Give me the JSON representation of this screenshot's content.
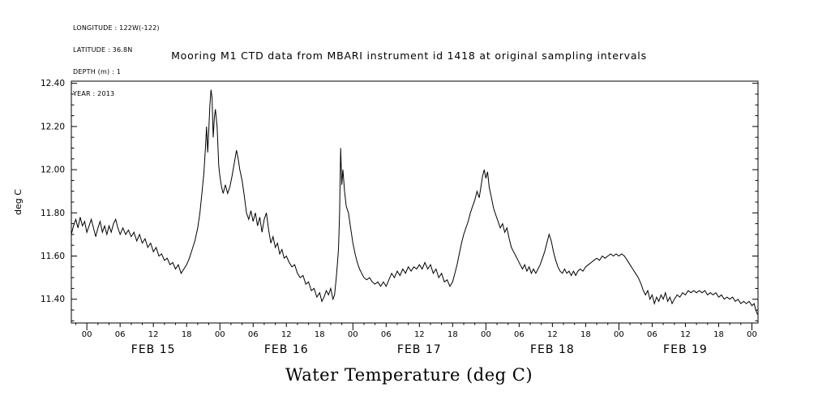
{
  "meta": {
    "longitude": "LONGITUDE : 122W(-122)",
    "latitude": "LATITUDE : 36.8N",
    "depth": "DEPTH (m) : 1",
    "year": "YEAR : 2013"
  },
  "title": "Mooring M1 CTD data from MBARI instrument id 1418 at original sampling intervals",
  "bottom_label": "Water Temperature (deg C)",
  "chart_data": {
    "type": "line",
    "title": "Mooring M1 CTD data from MBARI instrument id 1418 at original sampling intervals",
    "caption": "Water Temperature (deg C)",
    "xlabel": "",
    "ylabel": "deg C",
    "x_unit": "hours from FEB 15 00:00",
    "xlim": [
      -2.8,
      121.1
    ],
    "ylim": [
      11.29,
      12.41
    ],
    "line_color": "#000000",
    "grid": false,
    "legend": "none",
    "y_ticks": [
      {
        "v": 11.4,
        "label": "11.40"
      },
      {
        "v": 11.6,
        "label": "11.60"
      },
      {
        "v": 11.8,
        "label": "11.80"
      },
      {
        "v": 12.0,
        "label": "12.00"
      },
      {
        "v": 12.2,
        "label": "12.20"
      },
      {
        "v": 12.4,
        "label": "12.40"
      }
    ],
    "x_ticks": [
      {
        "t": 0,
        "label": "00"
      },
      {
        "t": 6,
        "label": "06"
      },
      {
        "t": 12,
        "label": "12"
      },
      {
        "t": 18,
        "label": "18"
      },
      {
        "t": 24,
        "label": "00"
      },
      {
        "t": 30,
        "label": "06"
      },
      {
        "t": 36,
        "label": "12"
      },
      {
        "t": 42,
        "label": "18"
      },
      {
        "t": 48,
        "label": "00"
      },
      {
        "t": 54,
        "label": "06"
      },
      {
        "t": 60,
        "label": "12"
      },
      {
        "t": 66,
        "label": "18"
      },
      {
        "t": 72,
        "label": "00"
      },
      {
        "t": 78,
        "label": "06"
      },
      {
        "t": 84,
        "label": "12"
      },
      {
        "t": 90,
        "label": "18"
      },
      {
        "t": 96,
        "label": "00"
      },
      {
        "t": 102,
        "label": "06"
      },
      {
        "t": 108,
        "label": "12"
      },
      {
        "t": 114,
        "label": "18"
      },
      {
        "t": 120,
        "label": "00"
      }
    ],
    "day_labels": [
      {
        "t": 12,
        "label": "FEB 15"
      },
      {
        "t": 36,
        "label": "FEB 16"
      },
      {
        "t": 60,
        "label": "FEB 17"
      },
      {
        "t": 84,
        "label": "FEB 18"
      },
      {
        "t": 108,
        "label": "FEB 19"
      }
    ],
    "points": [
      [
        -2.8,
        11.7
      ],
      [
        -2.4,
        11.74
      ],
      [
        -2.0,
        11.77
      ],
      [
        -1.6,
        11.73
      ],
      [
        -1.2,
        11.78
      ],
      [
        -0.8,
        11.74
      ],
      [
        -0.4,
        11.76
      ],
      [
        0.0,
        11.71
      ],
      [
        0.4,
        11.74
      ],
      [
        0.8,
        11.77
      ],
      [
        1.2,
        11.73
      ],
      [
        1.6,
        11.69
      ],
      [
        2.0,
        11.73
      ],
      [
        2.4,
        11.76
      ],
      [
        2.8,
        11.71
      ],
      [
        3.2,
        11.74
      ],
      [
        3.6,
        11.7
      ],
      [
        4.0,
        11.74
      ],
      [
        4.4,
        11.71
      ],
      [
        4.8,
        11.75
      ],
      [
        5.2,
        11.77
      ],
      [
        5.6,
        11.73
      ],
      [
        6.0,
        11.7
      ],
      [
        6.5,
        11.73
      ],
      [
        7.0,
        11.7
      ],
      [
        7.5,
        11.72
      ],
      [
        8.0,
        11.69
      ],
      [
        8.5,
        11.71
      ],
      [
        9.0,
        11.67
      ],
      [
        9.5,
        11.7
      ],
      [
        10.0,
        11.66
      ],
      [
        10.5,
        11.68
      ],
      [
        11.0,
        11.64
      ],
      [
        11.5,
        11.66
      ],
      [
        12.0,
        11.62
      ],
      [
        12.5,
        11.64
      ],
      [
        13.0,
        11.6
      ],
      [
        13.5,
        11.61
      ],
      [
        14.0,
        11.58
      ],
      [
        14.5,
        11.59
      ],
      [
        15.0,
        11.56
      ],
      [
        15.5,
        11.57
      ],
      [
        16.0,
        11.54
      ],
      [
        16.5,
        11.56
      ],
      [
        17.0,
        11.52
      ],
      [
        17.5,
        11.54
      ],
      [
        18.0,
        11.56
      ],
      [
        18.5,
        11.59
      ],
      [
        19.0,
        11.63
      ],
      [
        19.5,
        11.67
      ],
      [
        20.0,
        11.73
      ],
      [
        20.4,
        11.8
      ],
      [
        20.8,
        11.9
      ],
      [
        21.1,
        11.98
      ],
      [
        21.4,
        12.1
      ],
      [
        21.6,
        12.2
      ],
      [
        21.8,
        12.08
      ],
      [
        22.0,
        12.18
      ],
      [
        22.2,
        12.3
      ],
      [
        22.4,
        12.37
      ],
      [
        22.6,
        12.33
      ],
      [
        22.8,
        12.15
      ],
      [
        23.0,
        12.24
      ],
      [
        23.2,
        12.28
      ],
      [
        23.5,
        12.2
      ],
      [
        23.8,
        12.02
      ],
      [
        24.0,
        11.97
      ],
      [
        24.3,
        11.92
      ],
      [
        24.6,
        11.89
      ],
      [
        25.0,
        11.93
      ],
      [
        25.4,
        11.89
      ],
      [
        25.8,
        11.92
      ],
      [
        26.2,
        11.97
      ],
      [
        26.6,
        12.03
      ],
      [
        27.0,
        12.09
      ],
      [
        27.3,
        12.05
      ],
      [
        27.6,
        12.0
      ],
      [
        28.0,
        11.95
      ],
      [
        28.4,
        11.88
      ],
      [
        28.8,
        11.8
      ],
      [
        29.2,
        11.77
      ],
      [
        29.6,
        11.81
      ],
      [
        30.0,
        11.76
      ],
      [
        30.4,
        11.8
      ],
      [
        30.8,
        11.74
      ],
      [
        31.2,
        11.78
      ],
      [
        31.6,
        11.71
      ],
      [
        32.0,
        11.77
      ],
      [
        32.4,
        11.8
      ],
      [
        32.8,
        11.72
      ],
      [
        33.2,
        11.66
      ],
      [
        33.6,
        11.69
      ],
      [
        34.0,
        11.64
      ],
      [
        34.4,
        11.66
      ],
      [
        34.8,
        11.61
      ],
      [
        35.2,
        11.63
      ],
      [
        35.6,
        11.59
      ],
      [
        36.0,
        11.6
      ],
      [
        36.5,
        11.57
      ],
      [
        37.0,
        11.55
      ],
      [
        37.5,
        11.56
      ],
      [
        38.0,
        11.52
      ],
      [
        38.5,
        11.5
      ],
      [
        39.0,
        11.51
      ],
      [
        39.5,
        11.47
      ],
      [
        40.0,
        11.48
      ],
      [
        40.5,
        11.44
      ],
      [
        41.0,
        11.45
      ],
      [
        41.5,
        11.41
      ],
      [
        42.0,
        11.43
      ],
      [
        42.4,
        11.39
      ],
      [
        42.8,
        11.41
      ],
      [
        43.2,
        11.44
      ],
      [
        43.6,
        11.42
      ],
      [
        44.0,
        11.45
      ],
      [
        44.4,
        11.4
      ],
      [
        44.7,
        11.42
      ],
      [
        45.0,
        11.5
      ],
      [
        45.2,
        11.56
      ],
      [
        45.4,
        11.63
      ],
      [
        45.6,
        11.8
      ],
      [
        45.8,
        12.1
      ],
      [
        46.0,
        11.93
      ],
      [
        46.2,
        12.0
      ],
      [
        46.5,
        11.9
      ],
      [
        46.8,
        11.83
      ],
      [
        47.2,
        11.8
      ],
      [
        47.6,
        11.73
      ],
      [
        48.0,
        11.66
      ],
      [
        48.4,
        11.61
      ],
      [
        48.8,
        11.57
      ],
      [
        49.2,
        11.54
      ],
      [
        49.6,
        11.52
      ],
      [
        50.0,
        11.5
      ],
      [
        50.5,
        11.49
      ],
      [
        51.0,
        11.5
      ],
      [
        51.5,
        11.48
      ],
      [
        52.0,
        11.47
      ],
      [
        52.5,
        11.48
      ],
      [
        53.0,
        11.46
      ],
      [
        53.5,
        11.48
      ],
      [
        54.0,
        11.46
      ],
      [
        54.5,
        11.49
      ],
      [
        55.0,
        11.52
      ],
      [
        55.5,
        11.5
      ],
      [
        56.0,
        11.53
      ],
      [
        56.5,
        11.51
      ],
      [
        57.0,
        11.54
      ],
      [
        57.5,
        11.52
      ],
      [
        58.0,
        11.55
      ],
      [
        58.5,
        11.53
      ],
      [
        59.0,
        11.55
      ],
      [
        59.5,
        11.54
      ],
      [
        60.0,
        11.56
      ],
      [
        60.5,
        11.54
      ],
      [
        61.0,
        11.57
      ],
      [
        61.5,
        11.54
      ],
      [
        62.0,
        11.56
      ],
      [
        62.5,
        11.52
      ],
      [
        63.0,
        11.54
      ],
      [
        63.5,
        11.5
      ],
      [
        64.0,
        11.52
      ],
      [
        64.5,
        11.48
      ],
      [
        65.0,
        11.49
      ],
      [
        65.5,
        11.46
      ],
      [
        66.0,
        11.48
      ],
      [
        66.4,
        11.52
      ],
      [
        66.8,
        11.56
      ],
      [
        67.2,
        11.61
      ],
      [
        67.6,
        11.66
      ],
      [
        68.0,
        11.7
      ],
      [
        68.4,
        11.73
      ],
      [
        68.8,
        11.76
      ],
      [
        69.2,
        11.8
      ],
      [
        69.6,
        11.83
      ],
      [
        70.0,
        11.86
      ],
      [
        70.4,
        11.9
      ],
      [
        70.8,
        11.87
      ],
      [
        71.1,
        11.92
      ],
      [
        71.4,
        11.97
      ],
      [
        71.7,
        12.0
      ],
      [
        72.0,
        11.96
      ],
      [
        72.3,
        11.99
      ],
      [
        72.6,
        11.92
      ],
      [
        73.0,
        11.87
      ],
      [
        73.4,
        11.82
      ],
      [
        73.8,
        11.79
      ],
      [
        74.2,
        11.76
      ],
      [
        74.6,
        11.73
      ],
      [
        75.0,
        11.75
      ],
      [
        75.4,
        11.71
      ],
      [
        75.8,
        11.73
      ],
      [
        76.2,
        11.68
      ],
      [
        76.6,
        11.64
      ],
      [
        77.0,
        11.62
      ],
      [
        77.4,
        11.6
      ],
      [
        77.8,
        11.58
      ],
      [
        78.2,
        11.56
      ],
      [
        78.6,
        11.54
      ],
      [
        79.0,
        11.56
      ],
      [
        79.4,
        11.53
      ],
      [
        79.8,
        11.55
      ],
      [
        80.2,
        11.52
      ],
      [
        80.6,
        11.54
      ],
      [
        81.0,
        11.52
      ],
      [
        81.4,
        11.54
      ],
      [
        81.8,
        11.56
      ],
      [
        82.2,
        11.59
      ],
      [
        82.6,
        11.62
      ],
      [
        83.0,
        11.66
      ],
      [
        83.4,
        11.7
      ],
      [
        83.8,
        11.67
      ],
      [
        84.2,
        11.62
      ],
      [
        84.6,
        11.58
      ],
      [
        85.0,
        11.55
      ],
      [
        85.4,
        11.53
      ],
      [
        85.8,
        11.52
      ],
      [
        86.2,
        11.54
      ],
      [
        86.6,
        11.52
      ],
      [
        87.0,
        11.53
      ],
      [
        87.4,
        11.51
      ],
      [
        87.8,
        11.53
      ],
      [
        88.2,
        11.51
      ],
      [
        88.6,
        11.53
      ],
      [
        89.0,
        11.54
      ],
      [
        89.5,
        11.53
      ],
      [
        90.0,
        11.55
      ],
      [
        90.5,
        11.56
      ],
      [
        91.0,
        11.57
      ],
      [
        91.5,
        11.58
      ],
      [
        92.0,
        11.59
      ],
      [
        92.5,
        11.58
      ],
      [
        93.0,
        11.6
      ],
      [
        93.5,
        11.59
      ],
      [
        94.0,
        11.6
      ],
      [
        94.5,
        11.61
      ],
      [
        95.0,
        11.6
      ],
      [
        95.5,
        11.61
      ],
      [
        96.0,
        11.6
      ],
      [
        96.5,
        11.61
      ],
      [
        97.0,
        11.6
      ],
      [
        97.5,
        11.58
      ],
      [
        98.0,
        11.56
      ],
      [
        98.5,
        11.54
      ],
      [
        99.0,
        11.52
      ],
      [
        99.5,
        11.5
      ],
      [
        100.0,
        11.47
      ],
      [
        100.4,
        11.44
      ],
      [
        100.8,
        11.42
      ],
      [
        101.2,
        11.44
      ],
      [
        101.6,
        11.4
      ],
      [
        102.0,
        11.42
      ],
      [
        102.4,
        11.38
      ],
      [
        102.8,
        11.41
      ],
      [
        103.2,
        11.39
      ],
      [
        103.6,
        11.42
      ],
      [
        104.0,
        11.4
      ],
      [
        104.4,
        11.43
      ],
      [
        104.8,
        11.39
      ],
      [
        105.2,
        11.41
      ],
      [
        105.6,
        11.38
      ],
      [
        106.0,
        11.4
      ],
      [
        106.5,
        11.42
      ],
      [
        107.0,
        11.41
      ],
      [
        107.5,
        11.43
      ],
      [
        108.0,
        11.42
      ],
      [
        108.5,
        11.44
      ],
      [
        109.0,
        11.43
      ],
      [
        109.5,
        11.44
      ],
      [
        110.0,
        11.43
      ],
      [
        110.5,
        11.44
      ],
      [
        111.0,
        11.43
      ],
      [
        111.5,
        11.44
      ],
      [
        112.0,
        11.42
      ],
      [
        112.5,
        11.43
      ],
      [
        113.0,
        11.42
      ],
      [
        113.5,
        11.43
      ],
      [
        114.0,
        11.41
      ],
      [
        114.5,
        11.42
      ],
      [
        115.0,
        11.4
      ],
      [
        115.5,
        11.41
      ],
      [
        116.0,
        11.4
      ],
      [
        116.5,
        11.41
      ],
      [
        117.0,
        11.39
      ],
      [
        117.5,
        11.4
      ],
      [
        118.0,
        11.38
      ],
      [
        118.5,
        11.39
      ],
      [
        119.0,
        11.38
      ],
      [
        119.5,
        11.39
      ],
      [
        120.0,
        11.37
      ],
      [
        120.4,
        11.38
      ],
      [
        120.7,
        11.35
      ],
      [
        121.0,
        11.33
      ]
    ]
  }
}
